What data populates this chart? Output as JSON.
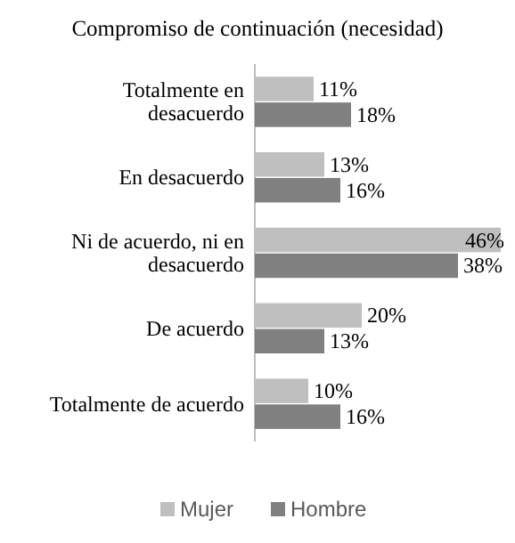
{
  "chart_data": {
    "type": "bar",
    "orientation": "horizontal",
    "title": "Compromiso  de continuación (necesidad)",
    "categories": [
      "Totalmente en desacuerdo",
      "En desacuerdo",
      "Ni de acuerdo, ni en desacuerdo",
      "De acuerdo",
      "Totalmente de acuerdo"
    ],
    "series": [
      {
        "name": "Mujer",
        "color": "#bfbfbf",
        "values": [
          11,
          13,
          46,
          20,
          10
        ],
        "value_labels": [
          "11%",
          "13%",
          "46%",
          "20%",
          "10%"
        ]
      },
      {
        "name": "Hombre",
        "color": "#808080",
        "values": [
          18,
          16,
          38,
          13,
          16
        ],
        "value_labels": [
          "18%",
          "16%",
          "38%",
          "13%",
          "16%"
        ]
      }
    ],
    "legend": "bottom"
  }
}
